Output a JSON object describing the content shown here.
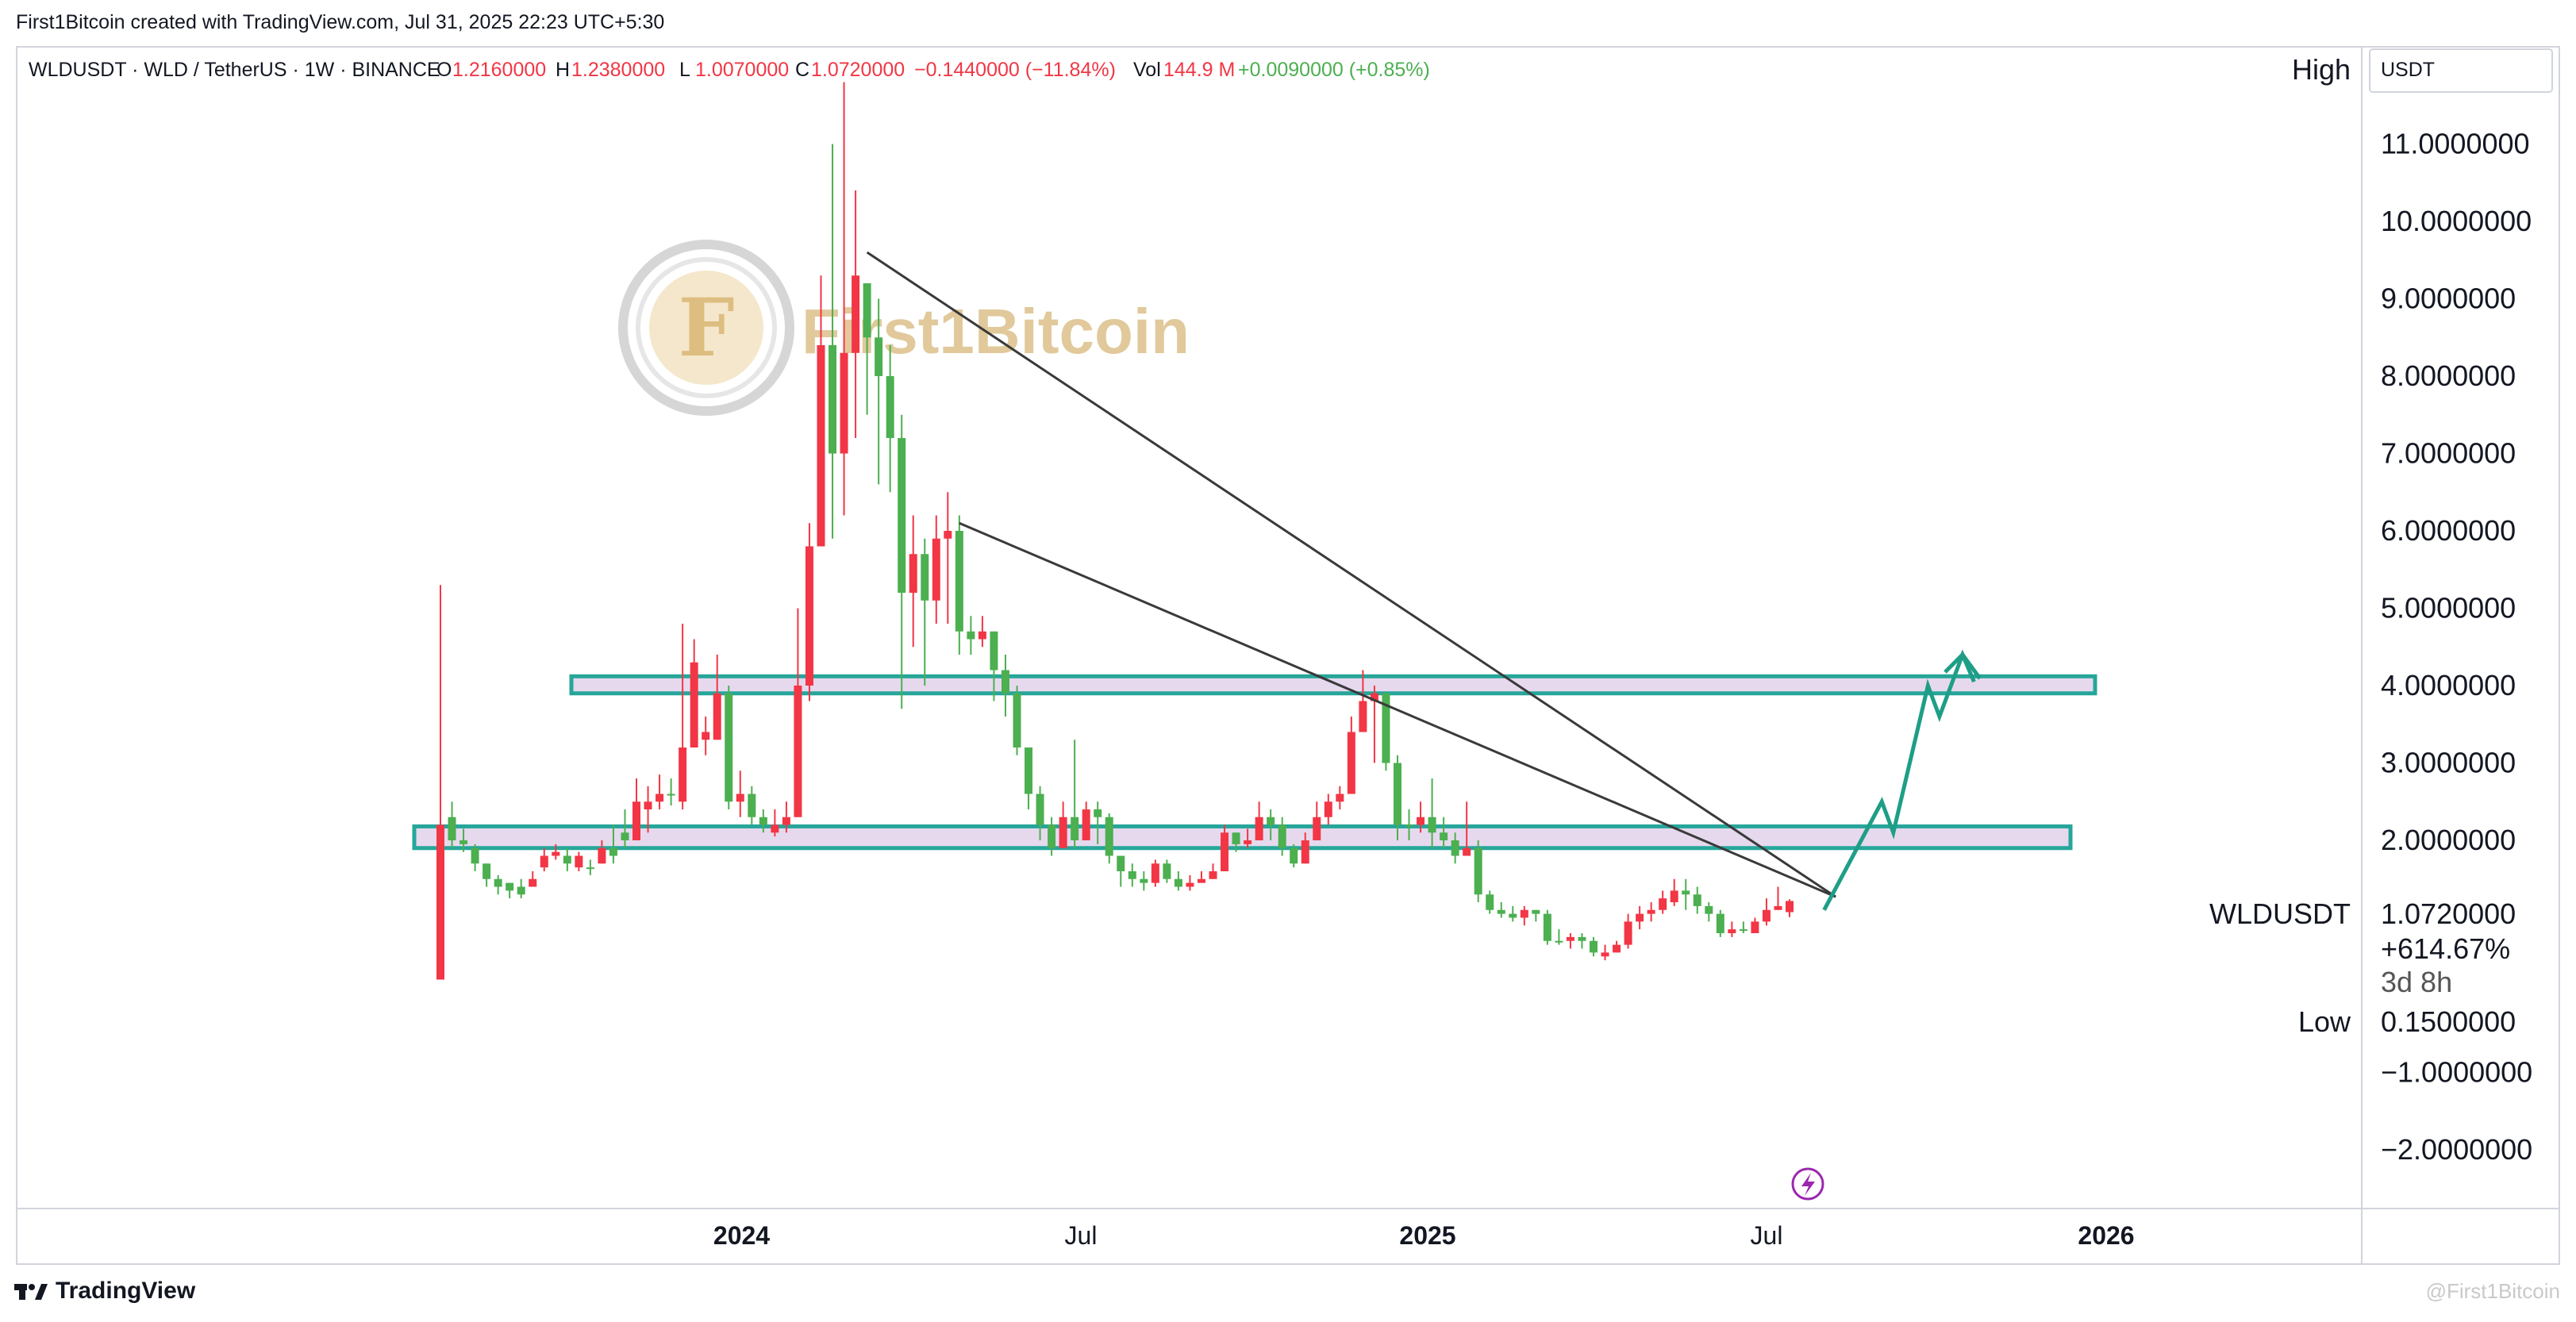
{
  "attribution": "First1Bitcoin created with TradingView.com, Jul 31, 2025 22:23 UTC+5:30",
  "symbol_header": {
    "symbol": "WLDUSDT · WLD / TetherUS · 1W · BINANCE",
    "open_label": "O",
    "open": "1.2160000",
    "high_label": "H",
    "high": "1.2380000",
    "low_label": "L",
    "low": "1.0070000",
    "close_label": "C",
    "close": "1.0720000",
    "change": "−0.1440000 (−11.84%)",
    "vol_label": "Vol",
    "vol": "144.9 M",
    "vol_change": "+0.0090000 (+0.85%)"
  },
  "price_scale": {
    "currency": "USDT",
    "high_label": "High",
    "low_label": "Low",
    "low_value": "0.1500000",
    "symbol_tag": "WLDUSDT",
    "last_price": "1.0720000",
    "percent": "+614.67%",
    "countdown": "3d 8h"
  },
  "watermark": {
    "text": "First1Bitcoin",
    "monogram": "F"
  },
  "footer": {
    "brand": "TradingView",
    "corner_watermark": "@First1Bitcoin"
  },
  "colors": {
    "up": "#4caf50",
    "down": "#f23645",
    "zone_fill": "#e6d9ee",
    "zone_border": "#26a69a",
    "trendline": "#3a3a3a",
    "arrow": "#1e9e86",
    "gold": "#d9b26a"
  },
  "chart_data": {
    "type": "candlestick",
    "x_ticks": [
      "2024",
      "Jul",
      "2025",
      "Jul",
      "2026"
    ],
    "y_ticks": [
      "11.0000000",
      "10.0000000",
      "9.0000000",
      "8.0000000",
      "7.0000000",
      "6.0000000",
      "5.0000000",
      "4.0000000",
      "3.0000000",
      "2.0000000",
      "−1.0000000",
      "−2.0000000"
    ],
    "ylim": [
      -2.4,
      12.2
    ],
    "candles": [
      [
        2.2,
        5.3,
        0.2,
        0.2
      ],
      [
        2.0,
        2.5,
        1.9,
        2.3
      ],
      [
        1.95,
        2.15,
        1.85,
        2.0
      ],
      [
        1.7,
        1.95,
        1.6,
        1.9
      ],
      [
        1.5,
        1.7,
        1.4,
        1.7
      ],
      [
        1.4,
        1.55,
        1.3,
        1.5
      ],
      [
        1.35,
        1.45,
        1.25,
        1.45
      ],
      [
        1.3,
        1.5,
        1.25,
        1.4
      ],
      [
        1.5,
        1.6,
        1.4,
        1.4
      ],
      [
        1.8,
        1.9,
        1.6,
        1.65
      ],
      [
        1.85,
        1.95,
        1.75,
        1.8
      ],
      [
        1.7,
        1.9,
        1.6,
        1.8
      ],
      [
        1.8,
        1.85,
        1.6,
        1.65
      ],
      [
        1.65,
        1.75,
        1.55,
        1.65
      ],
      [
        1.9,
        2.0,
        1.7,
        1.7
      ],
      [
        1.8,
        2.2,
        1.7,
        1.9
      ],
      [
        2.0,
        2.4,
        1.9,
        2.1
      ],
      [
        2.5,
        2.8,
        2.0,
        2.0
      ],
      [
        2.5,
        2.7,
        2.1,
        2.4
      ],
      [
        2.6,
        2.85,
        2.4,
        2.5
      ],
      [
        2.6,
        2.8,
        2.45,
        2.6
      ],
      [
        3.2,
        4.8,
        2.4,
        2.5
      ],
      [
        4.3,
        4.6,
        3.2,
        3.2
      ],
      [
        3.4,
        3.6,
        3.1,
        3.3
      ],
      [
        3.9,
        4.4,
        3.3,
        3.3
      ],
      [
        2.5,
        4.0,
        2.4,
        3.9
      ],
      [
        2.6,
        2.9,
        2.3,
        2.5
      ],
      [
        2.3,
        2.7,
        2.2,
        2.6
      ],
      [
        2.2,
        2.4,
        2.1,
        2.3
      ],
      [
        2.2,
        2.4,
        2.05,
        2.1
      ],
      [
        2.3,
        2.5,
        2.1,
        2.2
      ],
      [
        4.0,
        5.0,
        2.3,
        2.3
      ],
      [
        5.8,
        6.1,
        3.8,
        4.0
      ],
      [
        8.4,
        9.3,
        5.8,
        5.8
      ],
      [
        7.0,
        11.0,
        5.9,
        8.4
      ],
      [
        8.3,
        11.8,
        6.2,
        7.0
      ],
      [
        9.3,
        10.4,
        7.2,
        8.3
      ],
      [
        8.5,
        9.2,
        7.5,
        9.2
      ],
      [
        8.0,
        9.0,
        6.6,
        8.5
      ],
      [
        7.2,
        8.4,
        6.5,
        8.0
      ],
      [
        5.2,
        7.5,
        3.7,
        7.2
      ],
      [
        5.7,
        6.2,
        4.5,
        5.2
      ],
      [
        5.1,
        5.9,
        4.0,
        5.7
      ],
      [
        5.9,
        6.2,
        4.8,
        5.1
      ],
      [
        6.0,
        6.5,
        4.8,
        5.9
      ],
      [
        4.7,
        6.2,
        4.4,
        6.0
      ],
      [
        4.6,
        4.9,
        4.4,
        4.7
      ],
      [
        4.7,
        4.9,
        4.5,
        4.6
      ],
      [
        4.2,
        4.7,
        3.8,
        4.7
      ],
      [
        3.9,
        4.4,
        3.6,
        4.2
      ],
      [
        3.2,
        4.0,
        3.1,
        3.9
      ],
      [
        2.6,
        3.2,
        2.4,
        3.2
      ],
      [
        2.2,
        2.7,
        2.0,
        2.6
      ],
      [
        1.9,
        2.3,
        1.8,
        2.2
      ],
      [
        2.3,
        2.5,
        1.9,
        1.9
      ],
      [
        2.0,
        3.3,
        1.9,
        2.3
      ],
      [
        2.4,
        2.5,
        2.0,
        2.0
      ],
      [
        2.3,
        2.5,
        1.95,
        2.4
      ],
      [
        1.8,
        2.35,
        1.7,
        2.3
      ],
      [
        1.6,
        1.8,
        1.4,
        1.8
      ],
      [
        1.5,
        1.7,
        1.4,
        1.6
      ],
      [
        1.45,
        1.6,
        1.35,
        1.5
      ],
      [
        1.7,
        1.75,
        1.4,
        1.45
      ],
      [
        1.5,
        1.75,
        1.45,
        1.7
      ],
      [
        1.4,
        1.6,
        1.35,
        1.5
      ],
      [
        1.45,
        1.55,
        1.35,
        1.4
      ],
      [
        1.5,
        1.6,
        1.45,
        1.45
      ],
      [
        1.6,
        1.7,
        1.5,
        1.5
      ],
      [
        2.1,
        2.2,
        1.6,
        1.6
      ],
      [
        1.95,
        2.1,
        1.85,
        2.1
      ],
      [
        2.0,
        2.15,
        1.9,
        1.95
      ],
      [
        2.3,
        2.5,
        2.0,
        2.0
      ],
      [
        2.2,
        2.4,
        2.0,
        2.3
      ],
      [
        1.9,
        2.3,
        1.8,
        2.2
      ],
      [
        1.7,
        1.95,
        1.65,
        1.9
      ],
      [
        2.0,
        2.1,
        1.7,
        1.7
      ],
      [
        2.3,
        2.5,
        2.0,
        2.0
      ],
      [
        2.5,
        2.6,
        2.2,
        2.3
      ],
      [
        2.6,
        2.7,
        2.4,
        2.5
      ],
      [
        3.4,
        3.6,
        2.6,
        2.6
      ],
      [
        3.8,
        4.2,
        3.4,
        3.4
      ],
      [
        3.9,
        4.0,
        3.0,
        3.8
      ],
      [
        3.0,
        3.9,
        2.9,
        3.9
      ],
      [
        2.2,
        3.1,
        2.0,
        3.0
      ],
      [
        2.2,
        2.4,
        2.0,
        2.2
      ],
      [
        2.3,
        2.5,
        2.1,
        2.2
      ],
      [
        2.1,
        2.8,
        1.9,
        2.3
      ],
      [
        2.0,
        2.3,
        1.9,
        2.1
      ],
      [
        1.8,
        2.1,
        1.7,
        2.0
      ],
      [
        1.9,
        2.5,
        1.8,
        1.8
      ],
      [
        1.3,
        2.0,
        1.2,
        1.9
      ],
      [
        1.1,
        1.35,
        1.05,
        1.3
      ],
      [
        1.05,
        1.2,
        1.0,
        1.1
      ],
      [
        1.0,
        1.15,
        0.95,
        1.05
      ],
      [
        1.1,
        1.15,
        0.9,
        1.0
      ],
      [
        1.05,
        1.1,
        0.95,
        1.1
      ],
      [
        0.7,
        1.1,
        0.65,
        1.05
      ],
      [
        0.7,
        0.85,
        0.65,
        0.7
      ],
      [
        0.75,
        0.8,
        0.6,
        0.7
      ],
      [
        0.7,
        0.8,
        0.6,
        0.75
      ],
      [
        0.55,
        0.75,
        0.5,
        0.7
      ],
      [
        0.55,
        0.65,
        0.45,
        0.5
      ],
      [
        0.65,
        0.7,
        0.55,
        0.55
      ],
      [
        0.95,
        1.05,
        0.6,
        0.65
      ],
      [
        1.05,
        1.15,
        0.85,
        0.95
      ],
      [
        1.1,
        1.2,
        0.95,
        1.05
      ],
      [
        1.25,
        1.35,
        1.05,
        1.1
      ],
      [
        1.35,
        1.5,
        1.15,
        1.2
      ],
      [
        1.3,
        1.5,
        1.1,
        1.35
      ],
      [
        1.15,
        1.4,
        1.05,
        1.3
      ],
      [
        1.05,
        1.2,
        0.95,
        1.15
      ],
      [
        0.8,
        1.1,
        0.75,
        1.05
      ],
      [
        0.85,
        0.95,
        0.75,
        0.8
      ],
      [
        0.85,
        0.95,
        0.8,
        0.85
      ],
      [
        0.95,
        1.0,
        0.8,
        0.8
      ],
      [
        1.1,
        1.25,
        0.9,
        0.95
      ],
      [
        1.15,
        1.4,
        1.1,
        1.1
      ],
      [
        1.216,
        1.238,
        1.007,
        1.072
      ]
    ],
    "zones": [
      {
        "bottom": 3.9,
        "top": 4.12
      },
      {
        "bottom": 1.9,
        "top": 2.18
      }
    ],
    "trendlines": [
      {
        "from": [
          37,
          9.6
        ],
        "to": [
          121,
          1.27
        ]
      },
      {
        "from": [
          45,
          6.1
        ],
        "to": [
          121,
          1.27
        ]
      }
    ],
    "projection_path": [
      [
        120,
        1.1
      ],
      [
        125,
        2.5
      ],
      [
        126,
        2.1
      ],
      [
        129,
        4.0
      ],
      [
        130,
        3.6
      ],
      [
        132,
        4.4
      ],
      [
        133,
        4.05
      ]
    ]
  }
}
